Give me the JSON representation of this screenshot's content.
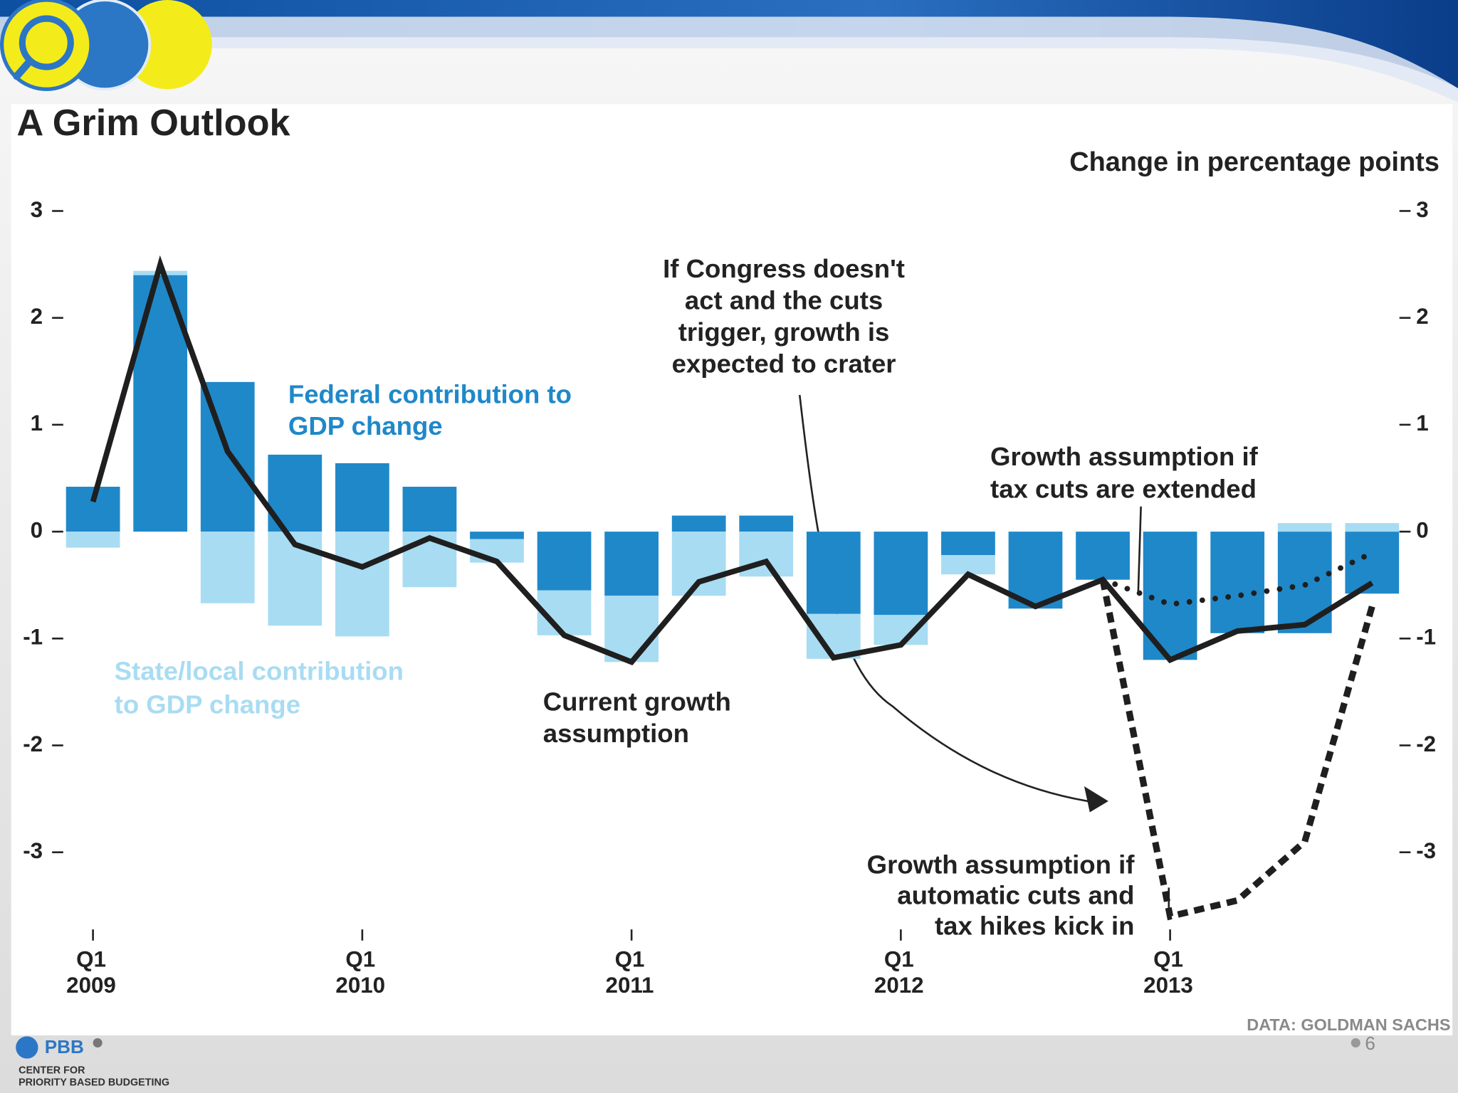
{
  "chart_data": {
    "type": "bar",
    "title": "A Grim Outlook",
    "y_label": "Change in percentage points",
    "source": "DATA: GOLDMAN SACHS",
    "categories": [
      "Q1 2009",
      null,
      null,
      null,
      "Q1 2010",
      null,
      null,
      null,
      "Q1 2011",
      null,
      null,
      null,
      "Q1 2012",
      null,
      null,
      null,
      "Q1 2013",
      null,
      null,
      null
    ],
    "series": [
      {
        "name": "Federal contribution to GDP change",
        "type": "bar",
        "color": "#1f88c9",
        "values": [
          0.42,
          2.4,
          1.4,
          0.72,
          0.64,
          0.42,
          -0.07,
          -0.55,
          -0.6,
          0.15,
          0.15,
          -0.77,
          -0.78,
          -0.22,
          -0.72,
          -0.45,
          -1.2,
          -0.95,
          -0.95,
          -0.58
        ]
      },
      {
        "name": "State/local contribution to GDP change",
        "type": "bar",
        "color": "#a8dcf2",
        "values": [
          -0.15,
          0.04,
          -0.67,
          -0.88,
          -0.98,
          -0.52,
          -0.22,
          -0.42,
          -0.62,
          -0.6,
          -0.42,
          -0.42,
          -0.28,
          -0.18,
          0,
          0,
          0,
          0,
          0.08,
          0.08
        ]
      },
      {
        "name": "Current growth assumption",
        "type": "line",
        "color": "#1f1f1f",
        "dash": "solid",
        "values": [
          0.28,
          2.5,
          0.75,
          -0.12,
          -0.33,
          -0.06,
          -0.28,
          -0.97,
          -1.22,
          -0.47,
          -0.28,
          -1.18,
          -1.06,
          -0.4,
          -0.7,
          -0.45,
          -1.2,
          -0.93,
          -0.87,
          -0.48
        ]
      },
      {
        "name": "Growth assumption if tax cuts are extended",
        "type": "line",
        "color": "#1f1f1f",
        "dash": "dotted",
        "values": [
          null,
          null,
          null,
          null,
          null,
          null,
          null,
          null,
          null,
          null,
          null,
          null,
          null,
          null,
          null,
          -0.45,
          -0.68,
          -0.6,
          -0.5,
          -0.2
        ]
      },
      {
        "name": "Growth assumption if automatic cuts and tax hikes kick in",
        "type": "line",
        "color": "#1f1f1f",
        "dash": "dashed",
        "values": [
          null,
          null,
          null,
          null,
          null,
          null,
          null,
          null,
          null,
          null,
          null,
          null,
          null,
          null,
          null,
          -0.45,
          -3.6,
          -3.45,
          -2.9,
          -0.7
        ]
      }
    ],
    "annotations": [
      "If Congress doesn't act and the cuts trigger, growth is expected to crater"
    ],
    "ylim": [
      -3.7,
      3.2
    ],
    "yticks": [
      3,
      2,
      1,
      0,
      -1,
      -2,
      -3
    ],
    "y2lim": [
      -3.7,
      3.2
    ],
    "y2ticks": [
      3,
      2,
      1,
      0,
      -1,
      -2,
      -3
    ],
    "grid": false
  },
  "slide": {
    "logo_text": "PBB",
    "org_name": [
      "CENTER FOR",
      "PRIORITY BASED BUDGETING"
    ],
    "page_number": "6"
  }
}
